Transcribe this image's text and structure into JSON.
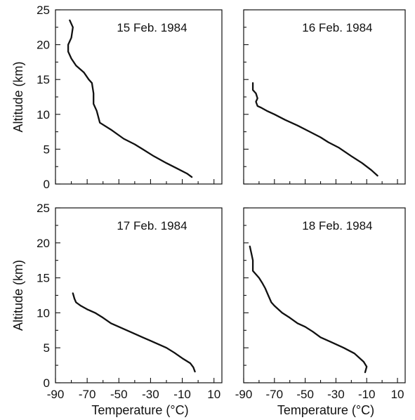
{
  "chart_data": [
    {
      "type": "line",
      "title": "15 Feb. 1984",
      "xlabel": "",
      "ylabel": "Altitude (km)",
      "xlim": [
        -90,
        15
      ],
      "ylim": [
        0,
        25
      ],
      "xticks": [],
      "yticks": [
        "0",
        "5",
        "10",
        "15",
        "20",
        "25"
      ],
      "series": [
        {
          "x": [
            -81,
            -79,
            -80,
            -82,
            -82,
            -80,
            -77,
            -72,
            -69,
            -67,
            -66,
            -66,
            -64,
            -62,
            -55,
            -47,
            -40,
            -35,
            -28,
            -20,
            -13,
            -7,
            -4
          ],
          "y": [
            23.5,
            22.5,
            21,
            20,
            19,
            18,
            17,
            16,
            15,
            14.5,
            13,
            11.5,
            10.5,
            8.8,
            7.8,
            6.5,
            5.7,
            5,
            4,
            3,
            2.2,
            1.5,
            1
          ]
        }
      ]
    },
    {
      "type": "line",
      "title": "16 Feb. 1984",
      "xlabel": "",
      "ylabel": "",
      "xlim": [
        -90,
        15
      ],
      "ylim": [
        0,
        25
      ],
      "xticks": [],
      "yticks": [],
      "series": [
        {
          "x": [
            -84,
            -84,
            -82,
            -81,
            -82,
            -81,
            -79,
            -75,
            -70,
            -63,
            -55,
            -47,
            -40,
            -35,
            -28,
            -20,
            -13,
            -7,
            -3
          ],
          "y": [
            14.5,
            13.5,
            13,
            12.3,
            11.8,
            11.2,
            11,
            10.5,
            10,
            9.2,
            8.4,
            7.5,
            6.7,
            6,
            5.2,
            4,
            3,
            2,
            1.2
          ]
        }
      ]
    },
    {
      "type": "line",
      "title": "17 Feb. 1984",
      "xlabel": "Temperature (°C)",
      "ylabel": "Altitude (km)",
      "xlim": [
        -90,
        15
      ],
      "ylim": [
        0,
        25
      ],
      "xticks": [
        "-90",
        "-70",
        "-50",
        "-30",
        "-10",
        "10"
      ],
      "yticks": [
        "0",
        "5",
        "10",
        "15",
        "20",
        "25"
      ],
      "series": [
        {
          "x": [
            -79,
            -78,
            -77,
            -74,
            -70,
            -65,
            -60,
            -55,
            -50,
            -45,
            -40,
            -35,
            -30,
            -25,
            -20,
            -15,
            -10,
            -5,
            -3,
            -2
          ],
          "y": [
            12.8,
            12,
            11.5,
            11,
            10.5,
            10,
            9.3,
            8.5,
            8,
            7.5,
            7,
            6.5,
            6,
            5.5,
            5,
            4.3,
            3.5,
            2.8,
            2.2,
            1.6
          ]
        }
      ]
    },
    {
      "type": "line",
      "title": "18 Feb. 1984",
      "xlabel": "Temperature (°C)",
      "ylabel": "",
      "xlim": [
        -90,
        15
      ],
      "ylim": [
        0,
        25
      ],
      "xticks": [
        "-90",
        "-70",
        "-50",
        "-30",
        "-10",
        "10"
      ],
      "yticks": [],
      "series": [
        {
          "x": [
            -86,
            -85,
            -84,
            -84,
            -82,
            -80,
            -78,
            -76,
            -74,
            -72,
            -70,
            -65,
            -60,
            -55,
            -50,
            -45,
            -40,
            -33,
            -25,
            -18,
            -12,
            -10,
            -11
          ],
          "y": [
            19.5,
            18.5,
            17.5,
            16,
            15.5,
            15,
            14.3,
            13.5,
            12.5,
            11.5,
            11,
            10,
            9.3,
            8.5,
            8,
            7.3,
            6.5,
            5.8,
            5,
            4.2,
            3,
            2.3,
            1.5
          ]
        }
      ]
    }
  ]
}
